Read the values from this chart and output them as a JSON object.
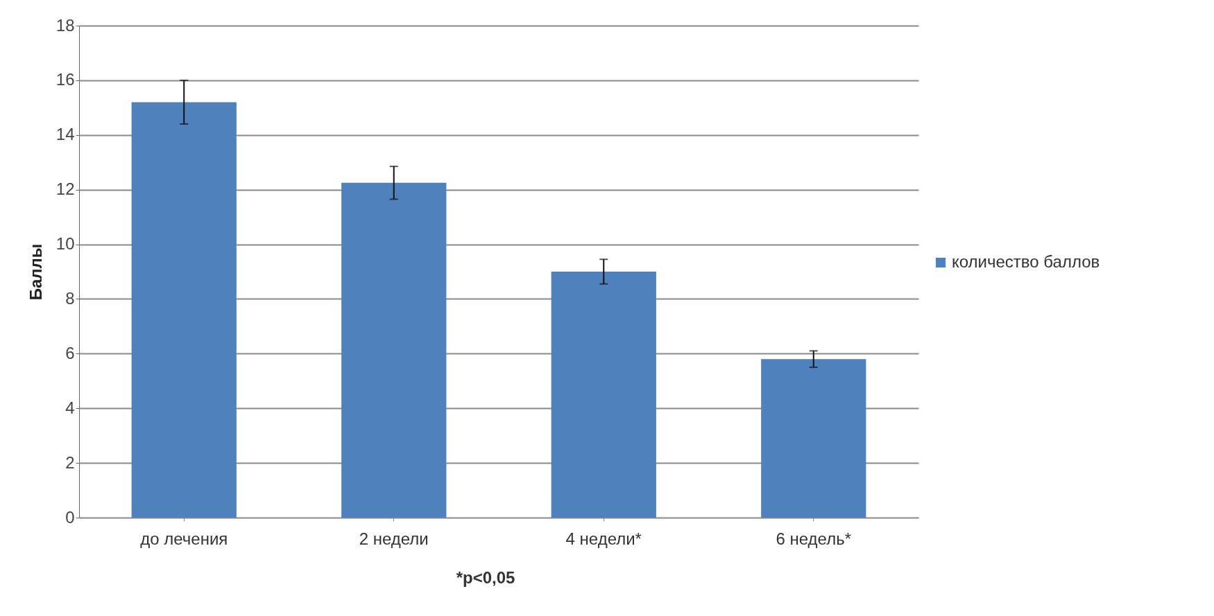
{
  "chart_data": {
    "type": "bar",
    "ylabel": "Баллы",
    "categories": [
      "до лечения",
      "2 недели",
      "4 недели*",
      "6 недель*"
    ],
    "series": [
      {
        "name": "количество баллов",
        "color": "#4f81bd",
        "values": [
          15.2,
          12.25,
          9.0,
          5.8
        ],
        "errors": [
          0.8,
          0.6,
          0.45,
          0.3
        ]
      }
    ],
    "ylim": [
      0,
      18
    ],
    "yticks": [
      0,
      2,
      4,
      6,
      8,
      10,
      12,
      14,
      16,
      18
    ],
    "grid": "y",
    "legend": "right",
    "annotations": [
      "*p<0,05"
    ]
  }
}
